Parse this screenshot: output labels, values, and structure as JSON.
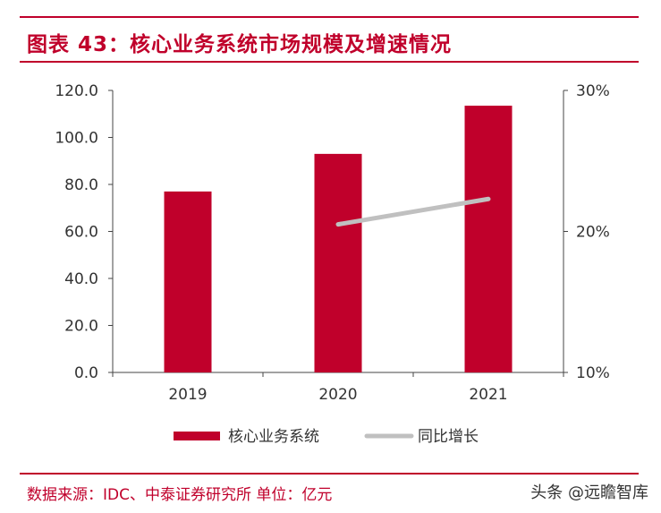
{
  "header": {
    "title": "图表 43：核心业务系统市场规模及增速情况"
  },
  "footer": {
    "source": "数据来源：IDC、中泰证券研究所 单位：亿元",
    "watermark": "头条 @远瞻智库"
  },
  "colors": {
    "accent": "#c0002b",
    "bar": "#c0002b",
    "line": "#c0c0c0"
  },
  "chart_data": {
    "type": "bar",
    "title": "",
    "categories": [
      "2019",
      "2020",
      "2021"
    ],
    "y_left": {
      "ticks": [
        "0.0",
        "20.0",
        "40.0",
        "60.0",
        "80.0",
        "100.0",
        "120.0"
      ],
      "range": [
        0,
        120
      ]
    },
    "y_right": {
      "ticks": [
        "10%",
        "20%",
        "30%"
      ],
      "range": [
        10,
        30
      ]
    },
    "series": [
      {
        "name": "核心业务系统",
        "type": "bar",
        "axis": "left",
        "values": [
          77.0,
          93.0,
          113.5
        ]
      },
      {
        "name": "同比增长",
        "type": "line",
        "axis": "right",
        "values": [
          null,
          20.5,
          22.3
        ]
      }
    ],
    "grid": false,
    "legend": "bottom"
  }
}
